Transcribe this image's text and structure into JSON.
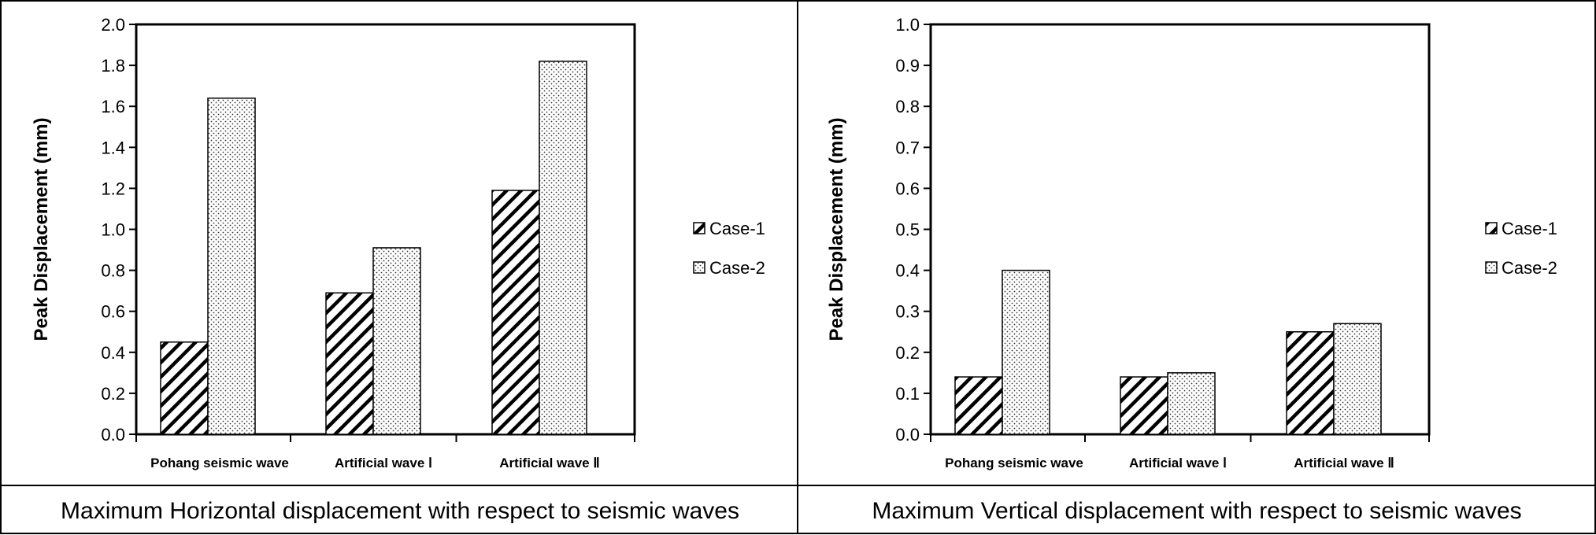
{
  "chart_data": [
    {
      "type": "bar",
      "title": "",
      "caption": "Maximum Horizontal displacement with respect to seismic waves",
      "xlabel": "",
      "ylabel": "Peak Displacement  (mm)",
      "categories": [
        "Pohang seismic wave",
        "Artificial wave Ⅰ",
        "Artificial wave Ⅱ"
      ],
      "ylim": [
        0,
        2.0
      ],
      "ytick_labels": [
        "0.0",
        "0.2",
        "0.4",
        "0.6",
        "0.8",
        "1.0",
        "1.2",
        "1.4",
        "1.6",
        "1.8",
        "2.0"
      ],
      "grid": false,
      "legend_position": "right",
      "series": [
        {
          "name": "Case-1",
          "pattern": "diagonal-hatch",
          "values": [
            0.45,
            0.69,
            1.19
          ]
        },
        {
          "name": "Case-2",
          "pattern": "dotted",
          "values": [
            1.64,
            0.91,
            1.82
          ]
        }
      ]
    },
    {
      "type": "bar",
      "title": "",
      "caption": "Maximum Vertical displacement with respect to seismic waves",
      "xlabel": "",
      "ylabel": "Peak Displacement  (mm)",
      "categories": [
        "Pohang seismic wave",
        "Artificial wave Ⅰ",
        "Artificial wave Ⅱ"
      ],
      "ylim": [
        0,
        1.0
      ],
      "ytick_labels": [
        "0.0",
        "0.1",
        "0.2",
        "0.3",
        "0.4",
        "0.5",
        "0.6",
        "0.7",
        "0.8",
        "0.9",
        "1.0"
      ],
      "grid": false,
      "legend_position": "right",
      "series": [
        {
          "name": "Case-1",
          "pattern": "diagonal-hatch",
          "values": [
            0.14,
            0.14,
            0.25
          ]
        },
        {
          "name": "Case-2",
          "pattern": "dotted",
          "values": [
            0.4,
            0.15,
            0.27
          ]
        }
      ]
    }
  ],
  "colors": {
    "bar_fill": "#ffffff",
    "bar_stroke": "#000000",
    "hatch": "#000000",
    "dots": "#333333"
  }
}
